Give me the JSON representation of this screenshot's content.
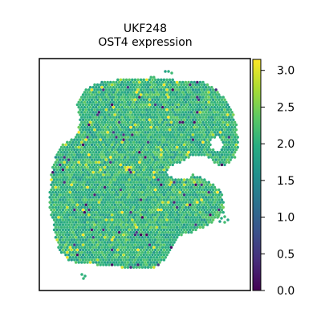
{
  "chart_data": {
    "type": "scatter",
    "subtype": "spatial-transcriptomics-spots",
    "title_lines": [
      "UKF248",
      "OST4 expression"
    ],
    "xlabel": "",
    "ylabel": "",
    "colormap": "viridis",
    "colorbar": {
      "range": [
        0.0,
        3.15
      ],
      "ticks": [
        0.0,
        0.5,
        1.0,
        1.5,
        2.0,
        2.5,
        3.0
      ],
      "tick_labels": [
        "0.0",
        "0.5",
        "1.0",
        "1.5",
        "2.0",
        "2.5",
        "3.0"
      ],
      "position": "right"
    },
    "value_distribution": {
      "typical_range": [
        1.5,
        2.6
      ],
      "low_outlier_fraction": 0.02,
      "high_outlier_fraction": 0.03
    },
    "grid": false,
    "axes_ticks_visible": false
  },
  "colors": {
    "viridis_stops": [
      "#440154",
      "#472c7a",
      "#3b518b",
      "#2c718e",
      "#21908d",
      "#27ad81",
      "#5cc863",
      "#aadc32",
      "#fde725"
    ],
    "frame": "#000000",
    "background": "#ffffff"
  }
}
